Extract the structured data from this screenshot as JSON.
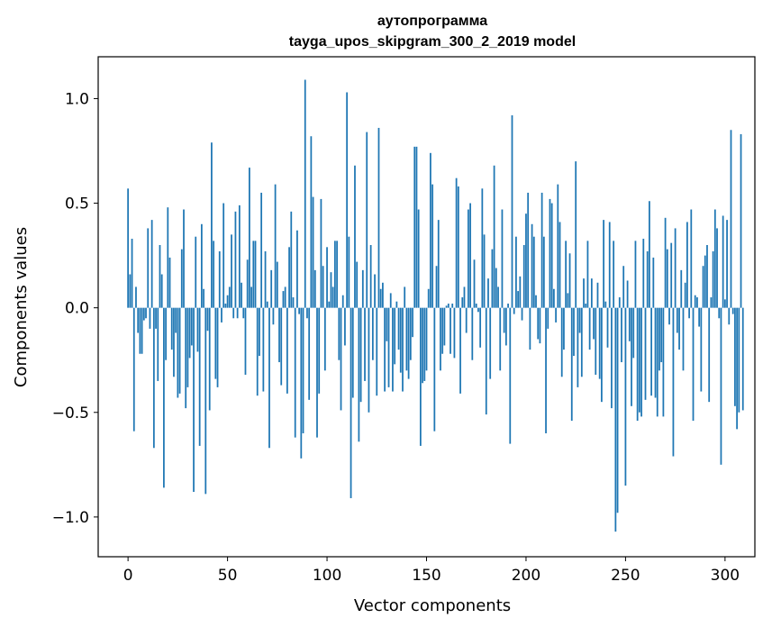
{
  "chart_data": {
    "type": "bar",
    "title_line1": "аутопрограмма",
    "title_line2": "tayga_upos_skipgram_300_2_2019 model",
    "xlabel": "Vector components",
    "ylabel": "Components values",
    "xlim": [
      -15,
      315
    ],
    "ylim": [
      -1.19,
      1.2
    ],
    "xticks": [
      0,
      50,
      100,
      150,
      200,
      250,
      300
    ],
    "xtick_labels": [
      "0",
      "50",
      "100",
      "150",
      "200",
      "250",
      "300"
    ],
    "yticks": [
      -1.0,
      -0.5,
      0.0,
      0.5,
      1.0
    ],
    "ytick_labels": [
      "−1.0",
      "−0.5",
      "0.0",
      "0.5",
      "1.0"
    ],
    "bar_color": "#1f77b4",
    "grid": false,
    "values": [
      0.57,
      0.16,
      0.33,
      -0.59,
      0.1,
      -0.12,
      -0.22,
      -0.22,
      -0.06,
      -0.05,
      0.38,
      -0.1,
      0.42,
      -0.67,
      -0.1,
      -0.35,
      0.3,
      0.16,
      -0.86,
      -0.25,
      0.48,
      0.24,
      -0.2,
      -0.33,
      -0.12,
      -0.43,
      -0.41,
      0.28,
      0.47,
      -0.48,
      -0.38,
      -0.24,
      -0.18,
      -0.88,
      0.34,
      -0.21,
      -0.66,
      0.4,
      0.09,
      -0.89,
      -0.11,
      -0.49,
      0.79,
      0.32,
      -0.34,
      -0.38,
      0.27,
      -0.07,
      0.5,
      0.02,
      0.06,
      0.1,
      0.35,
      -0.05,
      0.46,
      -0.05,
      0.49,
      0.12,
      -0.05,
      -0.32,
      0.23,
      0.67,
      0.1,
      0.32,
      0.32,
      -0.42,
      -0.23,
      0.55,
      -0.4,
      0.27,
      0.03,
      -0.67,
      0.18,
      -0.08,
      0.59,
      0.22,
      -0.26,
      -0.37,
      0.08,
      0.1,
      -0.41,
      0.29,
      0.46,
      0.05,
      -0.62,
      0.37,
      -0.03,
      -0.72,
      -0.6,
      1.09,
      -0.05,
      -0.44,
      0.82,
      0.53,
      0.18,
      -0.62,
      -0.41,
      0.52,
      0.2,
      -0.3,
      0.29,
      0.03,
      0.17,
      0.1,
      0.32,
      0.32,
      -0.25,
      -0.49,
      0.06,
      -0.18,
      1.03,
      0.34,
      -0.91,
      -0.43,
      0.68,
      0.22,
      -0.64,
      -0.45,
      0.18,
      -0.35,
      0.84,
      -0.5,
      0.3,
      -0.25,
      0.16,
      -0.42,
      0.86,
      0.09,
      0.12,
      -0.4,
      -0.16,
      -0.38,
      0.07,
      -0.4,
      -0.27,
      0.03,
      -0.2,
      -0.31,
      -0.4,
      0.1,
      -0.3,
      -0.34,
      -0.25,
      -0.14,
      0.77,
      0.77,
      0.47,
      -0.66,
      -0.36,
      -0.35,
      -0.3,
      0.09,
      0.74,
      0.59,
      -0.59,
      0.2,
      0.42,
      -0.3,
      -0.22,
      -0.18,
      0.01,
      0.02,
      -0.22,
      0.02,
      -0.24,
      0.62,
      0.58,
      -0.41,
      0.05,
      0.1,
      -0.12,
      0.47,
      0.5,
      -0.25,
      0.23,
      0.02,
      -0.02,
      -0.19,
      0.57,
      0.35,
      -0.51,
      0.14,
      -0.34,
      0.28,
      0.68,
      0.19,
      0.1,
      -0.3,
      0.47,
      -0.12,
      -0.18,
      0.02,
      -0.65,
      0.92,
      -0.03,
      0.34,
      0.08,
      0.15,
      -0.06,
      0.3,
      0.45,
      0.55,
      -0.2,
      0.4,
      0.34,
      0.06,
      -0.15,
      -0.17,
      0.55,
      0.34,
      -0.6,
      -0.1,
      0.52,
      0.5,
      0.09,
      -0.07,
      0.59,
      0.41,
      -0.33,
      -0.2,
      0.32,
      0.07,
      0.26,
      -0.54,
      -0.23,
      0.7,
      -0.38,
      -0.12,
      -0.33,
      0.14,
      0.02,
      0.32,
      -0.2,
      0.14,
      -0.15,
      -0.32,
      0.12,
      -0.34,
      -0.45,
      0.42,
      0.03,
      -0.19,
      0.41,
      -0.48,
      0.32,
      -1.07,
      -0.98,
      0.05,
      -0.26,
      0.2,
      -0.85,
      0.13,
      -0.16,
      -0.47,
      -0.24,
      0.32,
      -0.54,
      -0.5,
      -0.52,
      0.33,
      -0.44,
      0.27,
      0.51,
      -0.42,
      0.24,
      -0.43,
      -0.52,
      -0.3,
      -0.26,
      -0.52,
      0.43,
      0.28,
      -0.08,
      0.31,
      -0.71,
      0.38,
      -0.12,
      -0.2,
      0.18,
      -0.3,
      0.12,
      0.41,
      -0.05,
      0.47,
      -0.54,
      0.06,
      0.05,
      -0.09,
      -0.4,
      0.2,
      0.25,
      0.3,
      -0.45,
      0.05,
      0.27,
      0.47,
      0.38,
      -0.05,
      -0.75,
      0.44,
      0.04,
      0.42,
      -0.08,
      0.85,
      -0.03,
      -0.47,
      -0.58,
      -0.5,
      0.83,
      -0.49
    ]
  }
}
